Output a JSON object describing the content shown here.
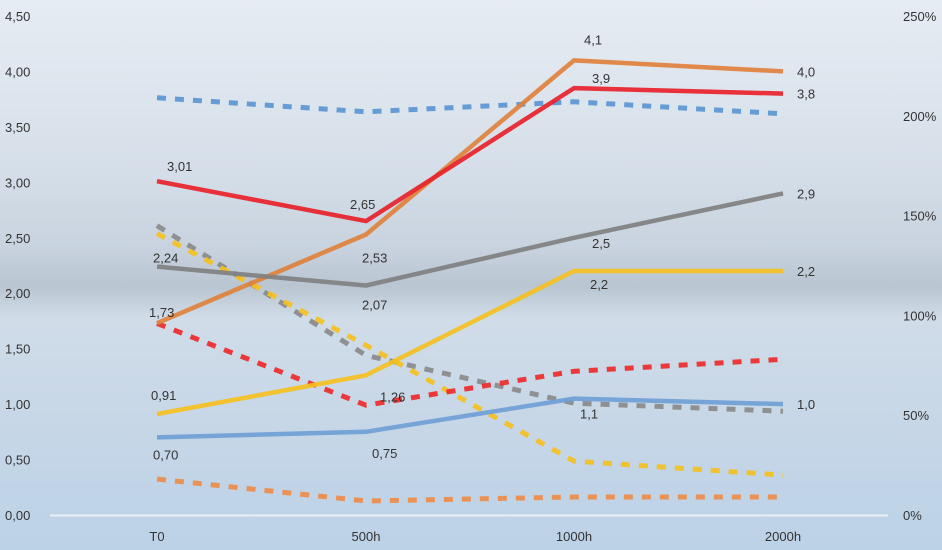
{
  "chart_data": {
    "type": "line",
    "categories": [
      "T0",
      "500h",
      "1000h",
      "2000h"
    ],
    "y_left": {
      "min": 0,
      "max": 4.5,
      "ticks": [
        "0,00",
        "0,50",
        "1,00",
        "1,50",
        "2,00",
        "2,50",
        "3,00",
        "3,50",
        "4,00",
        "4,50"
      ]
    },
    "y_right": {
      "min": 0,
      "max": 250,
      "unit": "%",
      "ticks": [
        "0%",
        "50%",
        "100%",
        "150%",
        "200%",
        "250%"
      ]
    },
    "grid": false,
    "series": [
      {
        "name": "orange-solid",
        "axis": "left",
        "style": "solid",
        "color": "#e0813c",
        "values": [
          1.73,
          2.53,
          4.1,
          4.0
        ],
        "labels": [
          "1,73",
          "2,53",
          "4,1",
          "4,0"
        ]
      },
      {
        "name": "red-solid",
        "axis": "left",
        "style": "solid",
        "color": "#e8222a",
        "values": [
          3.01,
          2.65,
          3.85,
          3.8
        ],
        "labels": [
          "3,01",
          "2,65",
          "3,9",
          "3,8"
        ]
      },
      {
        "name": "gray-solid",
        "axis": "left",
        "style": "solid",
        "color": "#808080",
        "values": [
          2.24,
          2.07,
          2.5,
          2.9
        ],
        "labels": [
          "2,24",
          "2,07",
          "2,5",
          "2,9"
        ]
      },
      {
        "name": "yellow-solid",
        "axis": "left",
        "style": "solid",
        "color": "#f5c020",
        "values": [
          0.91,
          1.26,
          2.2,
          2.2
        ],
        "labels": [
          "0,91",
          "1,26",
          "2,2",
          "2,2"
        ]
      },
      {
        "name": "blue-solid",
        "axis": "left",
        "style": "solid",
        "color": "#6fa0d6",
        "values": [
          0.7,
          0.75,
          1.05,
          1.0
        ],
        "labels": [
          "0,70",
          "0,75",
          "1,1",
          "1,0"
        ]
      },
      {
        "name": "blue-dashed",
        "axis": "right",
        "style": "dashed",
        "color": "#5b96d3",
        "values": [
          209,
          202,
          207,
          201
        ]
      },
      {
        "name": "gray-dashed",
        "axis": "right",
        "style": "dashed",
        "color": "#8a8a8a",
        "values": [
          145,
          80,
          56,
          52
        ]
      },
      {
        "name": "yellow-dashed",
        "axis": "right",
        "style": "dashed",
        "color": "#f5c020",
        "values": [
          141,
          85,
          27,
          20
        ]
      },
      {
        "name": "red-dashed",
        "axis": "right",
        "style": "dashed",
        "color": "#ee2a2a",
        "values": [
          96,
          55,
          72,
          78
        ]
      },
      {
        "name": "orange-dashed",
        "axis": "right",
        "style": "dashed",
        "color": "#ee8c4a",
        "values": [
          18,
          7,
          9,
          9
        ]
      }
    ]
  }
}
